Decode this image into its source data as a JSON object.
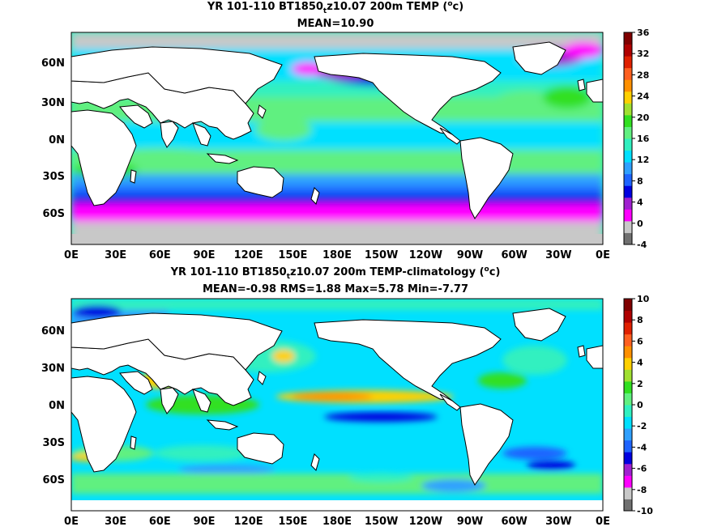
{
  "panels": [
    {
      "title_prefix": "YR 101-110 BT1850",
      "title_sub": "t",
      "title_suffix": "z10.07 200m TEMP (",
      "title_unit_sup": "o",
      "title_unit_end": "c)",
      "stats": "MEAN=10.90",
      "colorbar_ticks": [
        "36",
        "32",
        "28",
        "24",
        "20",
        "16",
        "12",
        "8",
        "4",
        "0",
        "-4"
      ],
      "lat_labels": [
        "60N",
        "30N",
        "0N",
        "30S",
        "60S"
      ],
      "lon_labels": [
        "0E",
        "30E",
        "60E",
        "90E",
        "120E",
        "150E",
        "180E",
        "150W",
        "120W",
        "90W",
        "60W",
        "30W",
        "0E"
      ]
    },
    {
      "title_prefix": "YR 101-110 BT1850",
      "title_sub": "t",
      "title_suffix": "z10.07 200m TEMP-climatology (",
      "title_unit_sup": "o",
      "title_unit_end": "c)",
      "stats": "MEAN=-0.98   RMS=1.88   Max=5.78   Min=-7.77",
      "colorbar_ticks": [
        "10",
        "8",
        "6",
        "4",
        "2",
        "0",
        "-2",
        "-4",
        "-6",
        "-8",
        "-10"
      ],
      "lat_labels": [
        "60N",
        "30N",
        "0N",
        "30S",
        "60S"
      ],
      "lon_labels": [
        "0E",
        "30E",
        "60E",
        "90E",
        "120E",
        "150E",
        "180E",
        "150W",
        "120W",
        "90W",
        "60W",
        "30W",
        "0E"
      ]
    }
  ],
  "colorbar_colors": [
    "#707070",
    "#c8c8c8",
    "#ff00ff",
    "#a020d0",
    "#0000e0",
    "#1e64ff",
    "#2fa0ff",
    "#00e0ff",
    "#30f0c0",
    "#60f080",
    "#30e020",
    "#a0e030",
    "#ffd000",
    "#ff9000",
    "#ff6020",
    "#e02000",
    "#b00000",
    "#800000"
  ],
  "land_color": "#ffffff",
  "missing_color": "#c8c8c8"
}
